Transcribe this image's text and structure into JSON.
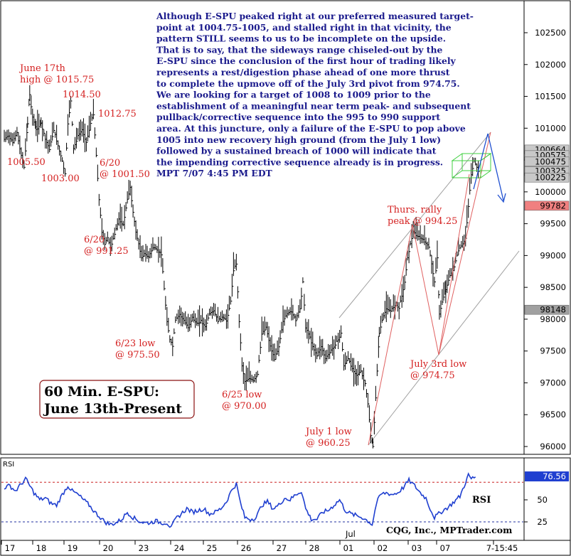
{
  "chart_data": {
    "type": "line",
    "style": "bar (OHLC), 60-minute",
    "title_lines": [
      "60 Min. E-SPU:",
      "June 13th-Present"
    ],
    "price_axis": {
      "ylim": [
        9590,
        10300
      ],
      "ticks": [
        9600,
        9650,
        9700,
        9750,
        9800,
        9850,
        9900,
        9950,
        10000,
        10050,
        10100,
        10150,
        10200,
        10250
      ],
      "tick_labels": [
        "96000",
        "96500",
        "97000",
        "97500",
        "98000",
        "98500",
        "99000",
        "99500",
        "100000",
        "100500",
        "101000",
        "101500",
        "102000",
        "102500"
      ]
    },
    "x_axis": {
      "tick_labels": [
        "17",
        "18",
        "19",
        "20",
        "23",
        "24",
        "25",
        "26",
        "27",
        "28",
        "01",
        "02",
        "03",
        "07",
        "7-15:45"
      ],
      "month_label": "Jul"
    },
    "price_badges": [
      {
        "label": "100664",
        "value": 10066.4,
        "bg": "#c8c8c8",
        "fg": "#000000"
      },
      {
        "label": "100575",
        "value": 10057.5,
        "bg": "#c8c8c8",
        "fg": "#000000"
      },
      {
        "label": "100475",
        "value": 10047.5,
        "bg": "#c8c8c8",
        "fg": "#000000"
      },
      {
        "label": "100325",
        "value": 10032.5,
        "bg": "#c8c8c8",
        "fg": "#000000"
      },
      {
        "label": "100225",
        "value": 10022.5,
        "bg": "#c8c8c8",
        "fg": "#000000"
      },
      {
        "label": "99782",
        "value": 9978.2,
        "bg": "#f08080",
        "fg": "#000000"
      },
      {
        "label": "98148",
        "value": 9814.8,
        "bg": "#a0a0a0",
        "fg": "#000000"
      }
    ],
    "price_series": [
      [
        0,
        10085
      ],
      [
        6,
        10090
      ],
      [
        12,
        10080
      ],
      [
        18,
        10095
      ],
      [
        24,
        10060
      ],
      [
        28,
        10040
      ],
      [
        33,
        10110
      ],
      [
        36,
        10155
      ],
      [
        40,
        10120
      ],
      [
        45,
        10100
      ],
      [
        52,
        10110
      ],
      [
        58,
        10085
      ],
      [
        64,
        10070
      ],
      [
        70,
        10100
      ],
      [
        76,
        10075
      ],
      [
        82,
        10050
      ],
      [
        86,
        10030
      ],
      [
        90,
        10110
      ],
      [
        94,
        10145
      ],
      [
        98,
        10070
      ],
      [
        104,
        10090
      ],
      [
        110,
        10100
      ],
      [
        116,
        10080
      ],
      [
        122,
        10110
      ],
      [
        126,
        10125
      ],
      [
        130,
        10060
      ],
      [
        134,
        9990
      ],
      [
        138,
        9940
      ],
      [
        142,
        9920
      ],
      [
        146,
        9930
      ],
      [
        150,
        9915
      ],
      [
        156,
        9935
      ],
      [
        162,
        9960
      ],
      [
        168,
        9950
      ],
      [
        174,
        9990
      ],
      [
        178,
        10010
      ],
      [
        182,
        9970
      ],
      [
        186,
        9940
      ],
      [
        190,
        9920
      ],
      [
        194,
        9900
      ],
      [
        198,
        9905
      ],
      [
        204,
        9900
      ],
      [
        210,
        9915
      ],
      [
        216,
        9910
      ],
      [
        222,
        9905
      ],
      [
        226,
        9850
      ],
      [
        230,
        9800
      ],
      [
        234,
        9770
      ],
      [
        238,
        9760
      ],
      [
        242,
        9800
      ],
      [
        248,
        9810
      ],
      [
        254,
        9800
      ],
      [
        260,
        9790
      ],
      [
        266,
        9805
      ],
      [
        272,
        9795
      ],
      [
        278,
        9800
      ],
      [
        284,
        9790
      ],
      [
        290,
        9810
      ],
      [
        296,
        9815
      ],
      [
        302,
        9800
      ],
      [
        308,
        9805
      ],
      [
        314,
        9800
      ],
      [
        320,
        9830
      ],
      [
        324,
        9880
      ],
      [
        328,
        9890
      ],
      [
        332,
        9800
      ],
      [
        336,
        9730
      ],
      [
        340,
        9705
      ],
      [
        346,
        9710
      ],
      [
        352,
        9705
      ],
      [
        358,
        9715
      ],
      [
        364,
        9780
      ],
      [
        370,
        9790
      ],
      [
        376,
        9760
      ],
      [
        382,
        9740
      ],
      [
        388,
        9760
      ],
      [
        394,
        9800
      ],
      [
        400,
        9810
      ],
      [
        406,
        9815
      ],
      [
        412,
        9800
      ],
      [
        418,
        9820
      ],
      [
        422,
        9860
      ],
      [
        426,
        9790
      ],
      [
        430,
        9780
      ],
      [
        436,
        9760
      ],
      [
        442,
        9745
      ],
      [
        448,
        9760
      ],
      [
        454,
        9740
      ],
      [
        460,
        9750
      ],
      [
        466,
        9760
      ],
      [
        472,
        9770
      ],
      [
        476,
        9780
      ],
      [
        480,
        9730
      ],
      [
        486,
        9740
      ],
      [
        492,
        9725
      ],
      [
        498,
        9715
      ],
      [
        504,
        9720
      ],
      [
        510,
        9700
      ],
      [
        514,
        9670
      ],
      [
        518,
        9620
      ],
      [
        521,
        9602
      ],
      [
        525,
        9680
      ],
      [
        530,
        9780
      ],
      [
        534,
        9800
      ],
      [
        540,
        9820
      ],
      [
        546,
        9815
      ],
      [
        552,
        9825
      ],
      [
        558,
        9820
      ],
      [
        562,
        9840
      ],
      [
        566,
        9860
      ],
      [
        570,
        9900
      ],
      [
        574,
        9920
      ],
      [
        578,
        9940
      ],
      [
        582,
        9935
      ],
      [
        588,
        9930
      ],
      [
        594,
        9925
      ],
      [
        600,
        9915
      ],
      [
        604,
        9890
      ],
      [
        608,
        9860
      ],
      [
        612,
        9900
      ],
      [
        615,
        9810
      ],
      [
        619,
        9830
      ],
      [
        624,
        9850
      ],
      [
        630,
        9870
      ],
      [
        636,
        9885
      ],
      [
        642,
        9910
      ],
      [
        648,
        9920
      ],
      [
        652,
        9930
      ],
      [
        656,
        9980
      ],
      [
        660,
        10030
      ],
      [
        664,
        10050
      ],
      [
        668,
        10040
      ],
      [
        672,
        10030
      ]
    ],
    "rsi": {
      "label": "RSI",
      "last_value": 76.56,
      "last_label": "76.56",
      "overbought": 70,
      "oversold": 25,
      "tick_labels": [
        "50",
        "25"
      ],
      "series": [
        [
          0,
          64
        ],
        [
          8,
          66
        ],
        [
          16,
          60
        ],
        [
          24,
          68
        ],
        [
          30,
          74
        ],
        [
          36,
          66
        ],
        [
          42,
          58
        ],
        [
          50,
          50
        ],
        [
          58,
          52
        ],
        [
          66,
          46
        ],
        [
          74,
          44
        ],
        [
          82,
          56
        ],
        [
          90,
          66
        ],
        [
          96,
          60
        ],
        [
          104,
          56
        ],
        [
          112,
          50
        ],
        [
          120,
          44
        ],
        [
          128,
          36
        ],
        [
          136,
          30
        ],
        [
          142,
          25
        ],
        [
          150,
          22
        ],
        [
          158,
          24
        ],
        [
          166,
          28
        ],
        [
          174,
          36
        ],
        [
          182,
          30
        ],
        [
          190,
          26
        ],
        [
          198,
          24
        ],
        [
          206,
          24
        ],
        [
          214,
          26
        ],
        [
          222,
          24
        ],
        [
          230,
          24
        ],
        [
          236,
          18
        ],
        [
          242,
          28
        ],
        [
          250,
          34
        ],
        [
          258,
          40
        ],
        [
          266,
          36
        ],
        [
          274,
          38
        ],
        [
          282,
          40
        ],
        [
          290,
          34
        ],
        [
          298,
          36
        ],
        [
          306,
          40
        ],
        [
          314,
          48
        ],
        [
          322,
          62
        ],
        [
          328,
          68
        ],
        [
          334,
          46
        ],
        [
          340,
          30
        ],
        [
          348,
          28
        ],
        [
          356,
          30
        ],
        [
          364,
          44
        ],
        [
          372,
          48
        ],
        [
          380,
          40
        ],
        [
          388,
          44
        ],
        [
          396,
          52
        ],
        [
          404,
          50
        ],
        [
          412,
          56
        ],
        [
          420,
          60
        ],
        [
          426,
          40
        ],
        [
          434,
          28
        ],
        [
          442,
          28
        ],
        [
          450,
          36
        ],
        [
          458,
          38
        ],
        [
          466,
          44
        ],
        [
          474,
          50
        ],
        [
          482,
          38
        ],
        [
          490,
          34
        ],
        [
          498,
          32
        ],
        [
          506,
          30
        ],
        [
          514,
          26
        ],
        [
          520,
          22
        ],
        [
          526,
          46
        ],
        [
          532,
          56
        ],
        [
          540,
          58
        ],
        [
          548,
          56
        ],
        [
          556,
          58
        ],
        [
          564,
          64
        ],
        [
          572,
          72
        ],
        [
          580,
          66
        ],
        [
          588,
          58
        ],
        [
          596,
          52
        ],
        [
          602,
          40
        ],
        [
          608,
          30
        ],
        [
          614,
          34
        ],
        [
          620,
          38
        ],
        [
          628,
          42
        ],
        [
          636,
          48
        ],
        [
          644,
          54
        ],
        [
          650,
          66
        ],
        [
          656,
          78
        ],
        [
          660,
          74
        ],
        [
          666,
          76
        ]
      ]
    },
    "annotations": [
      {
        "lines": [
          "June 17th",
          "high @ 1015.75"
        ]
      },
      {
        "lines": [
          "1014.50"
        ]
      },
      {
        "lines": [
          "1012.75"
        ]
      },
      {
        "lines": [
          "1005.50"
        ]
      },
      {
        "lines": [
          "1003.00"
        ]
      },
      {
        "lines": [
          "6/20",
          "@ 1001.50"
        ]
      },
      {
        "lines": [
          "6/20",
          "@ 991.25"
        ]
      },
      {
        "lines": [
          "6/23 low",
          "@ 975.50"
        ]
      },
      {
        "lines": [
          "6/25 low",
          "@ 970.00"
        ]
      },
      {
        "lines": [
          "July 1 low",
          "@ 960.25"
        ]
      },
      {
        "lines": [
          "Thurs. rally",
          "peak @ 994.25"
        ]
      },
      {
        "lines": [
          "July 3rd low",
          "@ 974.75"
        ]
      }
    ],
    "commentary": [
      "Although E-SPU peaked right at our preferred measured target-",
      "point at 1004.75-1005, and stalled right in that vicinity, the",
      "pattern STILL seems to us to be incomplete on the upside.",
      "That is to say, that the sideways range chiseled-out by the",
      "E-SPU since the conclusion of the first hour of trading likely",
      "represents a rest/digestion phase ahead of one more thrust",
      "to complete the upmove off of the July 3rd pivot from 974.75.",
      "We are looking for a target of 1008 to 1009 prior to the",
      "establishment of a meaningful near term peak- and subsequent",
      "pullback/corrective sequence into the 995 to 990 support",
      "area. At this juncture, only a failure of the E-SPU to pop above",
      "1005 into new recovery high ground (from the July 1 low)",
      "followed by a sustained breach of 1000 will indicate that",
      "the impending corrective sequence already is in progress.",
      "MPT 7/07 4:45 PM EDT"
    ],
    "credit": "CQG, Inc., MPTrader.com",
    "colors": {
      "price_bars": "#000000",
      "annotations": "#d42020",
      "commentary": "#1a1a8c",
      "rsi_line": "#1f3fd0",
      "channel": "#a0a0a0",
      "zigzag": "#e06060",
      "projection": "#2050d0",
      "target_box": "#40d040"
    }
  }
}
